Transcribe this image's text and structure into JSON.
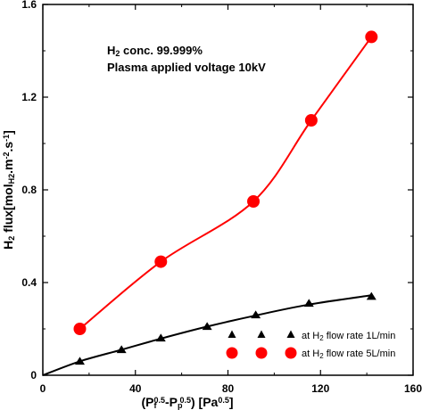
{
  "chart_data": {
    "type": "scatter",
    "xlim": [
      0,
      160
    ],
    "ylim": [
      0,
      1.6
    ],
    "x_ticks": [
      "0",
      "40",
      "80",
      "120",
      "160"
    ],
    "y_ticks": [
      "0",
      "0.4",
      "0.8",
      "1.2",
      "1.6"
    ],
    "grid": false,
    "legend_position": "bottom-right",
    "xlabel": {
      "open": "(P",
      "f_sub": "f",
      "sup1": "0.5",
      "dash": "-P",
      "p_sub": "p",
      "sup2": "0.5",
      "close": ") [Pa",
      "unit_sup": "0.5",
      "end": "]"
    },
    "ylabel": {
      "h": "H",
      "h_sub": "2",
      "flux": " flux[mol",
      "mol_sub": "H2",
      "m": ".m",
      "m_sup": "-2",
      "s": ".s",
      "s_sup": "-1",
      "end": "]"
    },
    "annotations": {
      "line1_h": "H",
      "line1_sub": "2",
      "line1_rest": " conc. 99.999%",
      "line2": "Plasma applied voltage 10kV"
    },
    "series": [
      {
        "name": "at H2 flow rate 1L/min",
        "legend": {
          "pre": "at H",
          "sub": "2",
          "post": " flow rate 1L/min"
        },
        "marker": "triangle",
        "color": "#000000",
        "x": [
          0,
          16,
          34,
          51,
          71,
          92,
          115,
          142
        ],
        "y": [
          0,
          0.06,
          0.11,
          0.16,
          0.21,
          0.26,
          0.31,
          0.34
        ],
        "curve_x": [
          0,
          16,
          34,
          51,
          71,
          92,
          115,
          142
        ],
        "curve_y": [
          0,
          0.06,
          0.11,
          0.158,
          0.21,
          0.258,
          0.305,
          0.345
        ]
      },
      {
        "name": "at H2 flow rate 5L/min",
        "legend": {
          "pre": "at H",
          "sub": "2",
          "post": " flow rate 5L/min"
        },
        "marker": "circle",
        "color": "#ff0000",
        "x": [
          16,
          51,
          91,
          116,
          142
        ],
        "y": [
          0.2,
          0.49,
          0.75,
          1.1,
          1.46
        ],
        "curve_x": [
          16,
          51,
          91,
          116,
          142
        ],
        "curve_y": [
          0.2,
          0.49,
          0.75,
          1.1,
          1.46
        ]
      }
    ]
  }
}
